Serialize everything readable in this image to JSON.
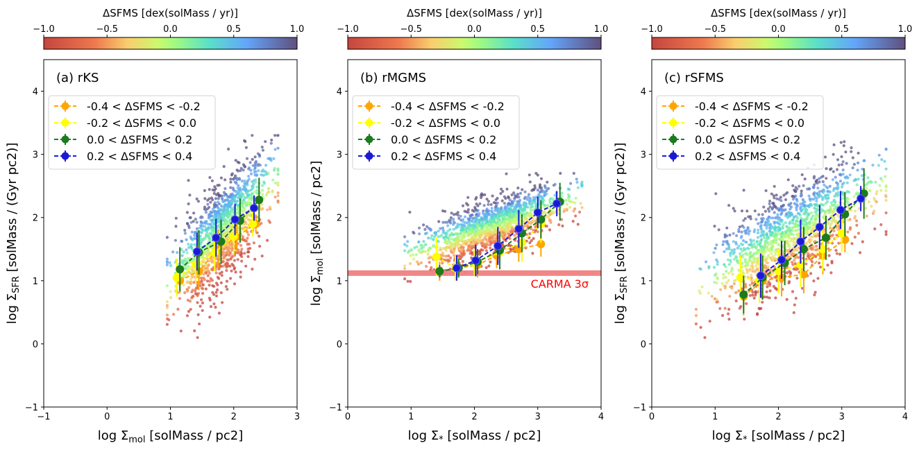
{
  "chart_data": [
    {
      "type": "scatter",
      "panel_label": "(a) rKS",
      "xlabel": "log Σ_mol [solMass / pc2]",
      "ylabel": "log Σ_SFR [solMass / (Gyr pc2)]",
      "xlim": [
        -1,
        3
      ],
      "ylim": [
        -1,
        4.5
      ],
      "xticks": [
        -1,
        0,
        1,
        2,
        3
      ],
      "yticks": [
        -1,
        0,
        1,
        2,
        3,
        4
      ],
      "colorbar": {
        "label": "ΔSFMS [dex(solMass / yr)]",
        "range": [
          -1.0,
          1.0
        ],
        "ticks": [
          "−1.0",
          "−0.5",
          "0.0",
          "0.5",
          "1.0"
        ],
        "colormap": "turbo-like",
        "placement": "top"
      },
      "scatter_cloud": {
        "x_range": [
          0.95,
          2.7
        ],
        "y_range": [
          0.1,
          3.3
        ],
        "trend": "positive",
        "color_by": "ΔSFMS"
      },
      "legend_placement": "upper-left",
      "series": [
        {
          "name": "-0.4 < ΔSFMS < -0.2",
          "color": "#ffa500",
          "x": [
            1.15,
            1.45,
            1.75,
            2.05,
            2.35
          ],
          "y": [
            1.0,
            1.15,
            1.5,
            1.7,
            1.9
          ],
          "err": [
            0.2,
            0.3,
            0.3,
            0.25,
            0.15
          ]
        },
        {
          "name": "-0.2 < ΔSFMS < 0.0",
          "color": "#ffff00",
          "x": [
            1.1,
            1.4,
            1.7,
            2.0,
            2.3
          ],
          "y": [
            1.05,
            1.25,
            1.45,
            1.7,
            1.9
          ],
          "err": [
            0.3,
            0.3,
            0.3,
            0.3,
            0.2
          ]
        },
        {
          "name": "0.0 < ΔSFMS < 0.2",
          "color": "#1e7a1e",
          "x": [
            1.15,
            1.45,
            1.8,
            2.1,
            2.4
          ],
          "y": [
            1.18,
            1.45,
            1.62,
            1.95,
            2.28
          ],
          "err": [
            0.35,
            0.35,
            0.35,
            0.35,
            0.35
          ]
        },
        {
          "name": "0.2 < ΔSFMS < 0.4",
          "color": "#1a1ad6",
          "x": [
            1.42,
            1.72,
            2.02,
            2.32
          ],
          "y": [
            1.46,
            1.68,
            1.97,
            2.15
          ],
          "err": [
            0.3,
            0.3,
            0.25,
            0.2
          ]
        }
      ]
    },
    {
      "type": "scatter",
      "panel_label": "(b) rMGMS",
      "xlabel": "log Σ_* [solMass / pc2]",
      "ylabel": "log Σ_mol [solMass / pc2]",
      "xlim": [
        0,
        4
      ],
      "ylim": [
        -1,
        4.5
      ],
      "xticks": [
        0,
        1,
        2,
        3,
        4
      ],
      "yticks": [
        -1,
        0,
        1,
        2,
        3,
        4
      ],
      "colorbar": {
        "label": "ΔSFMS [dex(solMass / yr)]",
        "range": [
          -1.0,
          1.0
        ],
        "ticks": [
          "−1.0",
          "−0.5",
          "0.0",
          "0.5",
          "1.0"
        ],
        "colormap": "turbo-like",
        "placement": "top"
      },
      "scatter_cloud": {
        "x_range": [
          0.9,
          3.7
        ],
        "y_range": [
          0.95,
          2.7
        ],
        "trend": "positive",
        "color_by": "ΔSFMS"
      },
      "hline": {
        "y": 1.12,
        "color": "#f08080",
        "label": "CARMA 3σ",
        "label_color": "#ff0000"
      },
      "legend_placement": "upper-left",
      "series": [
        {
          "name": "-0.4 < ΔSFMS < -0.2",
          "color": "#ffa500",
          "x": [
            1.45,
            1.75,
            2.05,
            2.35,
            2.7,
            3.05
          ],
          "y": [
            1.15,
            1.2,
            1.25,
            1.4,
            1.5,
            1.58
          ],
          "err": [
            0.15,
            0.15,
            0.2,
            0.2,
            0.2,
            0.2
          ]
        },
        {
          "name": "-0.2 < ΔSFMS < 0.0",
          "color": "#ffff00",
          "x": [
            1.4,
            1.7,
            2.0,
            2.4,
            2.75,
            3.05
          ],
          "y": [
            1.38,
            1.2,
            1.28,
            1.45,
            1.6,
            1.9
          ],
          "err": [
            0.3,
            0.2,
            0.2,
            0.25,
            0.3,
            0.3
          ]
        },
        {
          "name": "0.0 < ΔSFMS < 0.2",
          "color": "#1e7a1e",
          "x": [
            1.45,
            1.75,
            2.05,
            2.4,
            2.75,
            3.05,
            3.35
          ],
          "y": [
            1.15,
            1.2,
            1.3,
            1.48,
            1.75,
            1.97,
            2.25
          ],
          "err": [
            0.1,
            0.15,
            0.2,
            0.3,
            0.3,
            0.3,
            0.3
          ]
        },
        {
          "name": "0.2 < ΔSFMS < 0.4",
          "color": "#1a1ad6",
          "x": [
            1.72,
            2.02,
            2.37,
            2.7,
            3.0,
            3.3
          ],
          "y": [
            1.2,
            1.32,
            1.55,
            1.82,
            2.08,
            2.22
          ],
          "err": [
            0.2,
            0.25,
            0.3,
            0.3,
            0.25,
            0.2
          ]
        }
      ]
    },
    {
      "type": "scatter",
      "panel_label": "(c) rSFMS",
      "xlabel": "log Σ_* [solMass / pc2]",
      "ylabel": "log Σ_SFR [solMass / (Gyr pc2)]",
      "xlim": [
        0,
        4
      ],
      "ylim": [
        -1,
        4.5
      ],
      "xticks": [
        0,
        1,
        2,
        3,
        4
      ],
      "yticks": [
        -1,
        0,
        1,
        2,
        3,
        4
      ],
      "colorbar": {
        "label": "ΔSFMS [dex(solMass / yr)]",
        "range": [
          -1.0,
          1.0
        ],
        "ticks": [
          "−1.0",
          "−0.5",
          "0.0",
          "0.5",
          "1.0"
        ],
        "colormap": "turbo-like",
        "placement": "top"
      },
      "scatter_cloud": {
        "x_range": [
          0.7,
          3.7
        ],
        "y_range": [
          0.1,
          3.2
        ],
        "trend": "positive",
        "color_by": "ΔSFMS"
      },
      "legend_placement": "upper-left",
      "series": [
        {
          "name": "-0.4 < ΔSFMS < -0.2",
          "color": "#ffa500",
          "x": [
            1.45,
            1.75,
            2.05,
            2.4,
            2.7,
            3.05
          ],
          "y": [
            0.75,
            1.0,
            1.05,
            1.1,
            1.4,
            1.65
          ],
          "err": [
            0.3,
            0.3,
            0.3,
            0.3,
            0.3,
            0.2
          ]
        },
        {
          "name": "-0.2 < ΔSFMS < 0.0",
          "color": "#ffff00",
          "x": [
            1.4,
            1.7,
            2.0,
            2.35,
            2.7,
            3.0
          ],
          "y": [
            1.05,
            1.0,
            1.15,
            1.25,
            1.5,
            1.75
          ],
          "err": [
            0.35,
            0.35,
            0.35,
            0.35,
            0.35,
            0.3
          ]
        },
        {
          "name": "0.0 < ΔSFMS < 0.2",
          "color": "#1e7a1e",
          "x": [
            1.45,
            1.75,
            2.1,
            2.4,
            2.75,
            3.05,
            3.35
          ],
          "y": [
            0.78,
            1.05,
            1.28,
            1.5,
            1.68,
            2.05,
            2.38
          ],
          "err": [
            0.3,
            0.35,
            0.35,
            0.35,
            0.35,
            0.35,
            0.4
          ]
        },
        {
          "name": "0.2 < ΔSFMS < 0.4",
          "color": "#1a1ad6",
          "x": [
            1.72,
            2.05,
            2.35,
            2.65,
            2.98,
            3.3
          ],
          "y": [
            1.08,
            1.33,
            1.62,
            1.85,
            2.12,
            2.3
          ],
          "err": [
            0.35,
            0.3,
            0.35,
            0.35,
            0.3,
            0.2
          ]
        }
      ]
    }
  ]
}
